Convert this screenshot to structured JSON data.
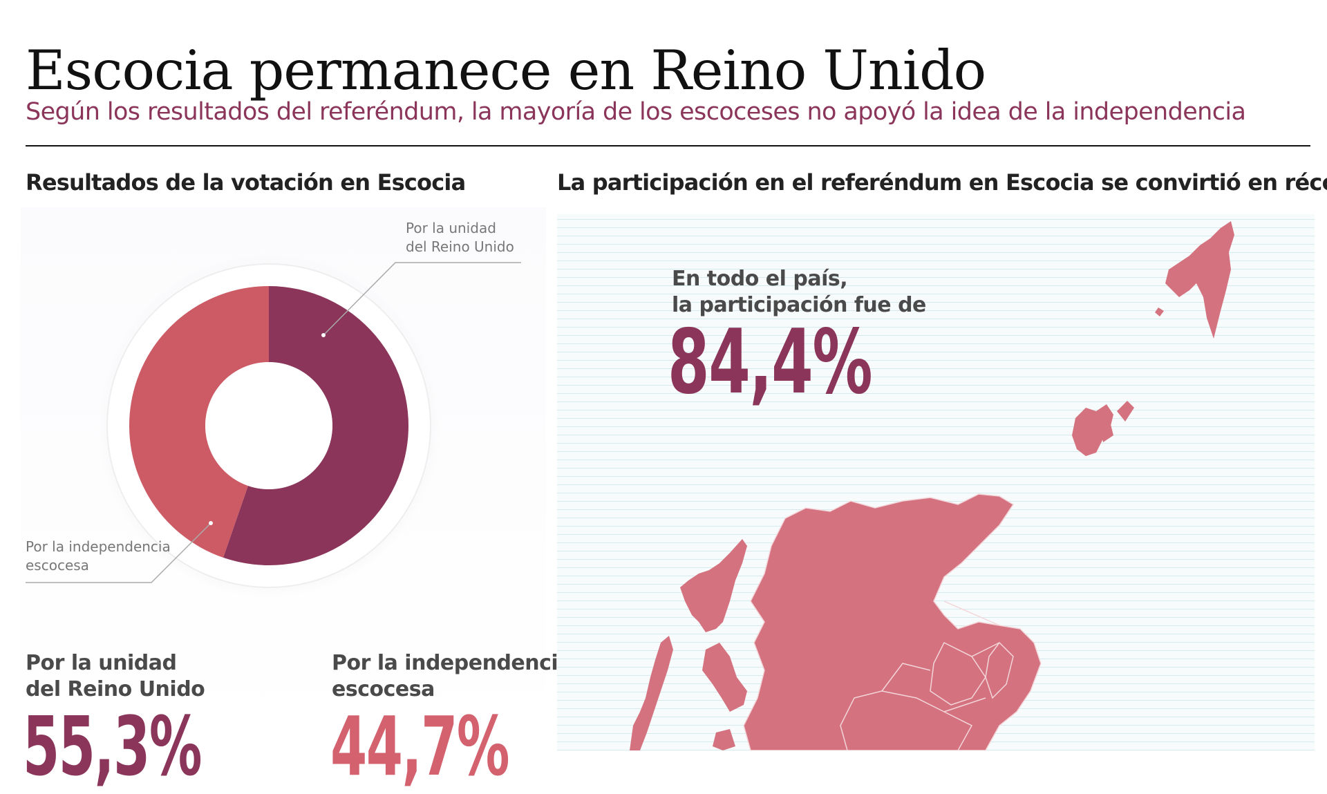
{
  "header": {
    "title": "Escocia permanece en Reino Unido",
    "subtitle": "Según los resultados del referéndum, la mayoría de los escoceses no apoyó la idea de la independencia"
  },
  "left_section": {
    "title": "Resultados de la votación en Escocia",
    "callout_union": "Por la unidad\ndel Reino Unido",
    "callout_indep": "Por la independencia\nescocesa",
    "stat_union_label": "Por la unidad\ndel Reino Unido",
    "stat_union_value": "55,3%",
    "stat_indep_label": "Por la independencia\nescocesa",
    "stat_indep_value": "44,7%"
  },
  "right_section": {
    "title": "La participación en el referéndum en Escocia se convirtió en récord",
    "turnout_label": "En todo el país,\nla participación fue de",
    "turnout_value": "84,4%"
  },
  "colors": {
    "union": "#8a3559",
    "independence": "#cd5b65",
    "map_fill": "#d4737f",
    "map_border": "#f3d6da"
  },
  "chart_data": {
    "type": "pie",
    "variant": "donut",
    "slices": [
      {
        "label": "Por la unidad del Reino Unido",
        "value": 55.3,
        "color": "#8a3559"
      },
      {
        "label": "Por la independencia escocesa",
        "value": 44.7,
        "color": "#cd5b65"
      }
    ],
    "title": "Resultados de la votación en Escocia"
  }
}
